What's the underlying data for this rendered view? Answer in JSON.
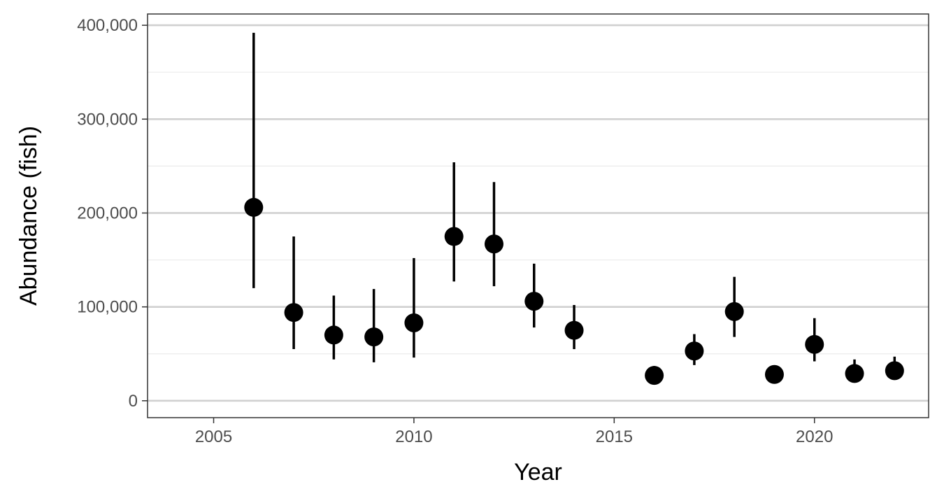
{
  "chart_data": {
    "type": "scatter",
    "title": "",
    "xlabel": "Year",
    "ylabel": "Abundance (fish)",
    "xlim": [
      2003.35,
      2022.85
    ],
    "ylim": [
      -18000,
      412000
    ],
    "x_ticks": [
      2005,
      2010,
      2015,
      2020
    ],
    "x_tick_labels": [
      "2005",
      "2010",
      "2015",
      "2020"
    ],
    "y_ticks": [
      0,
      100000,
      200000,
      300000,
      400000
    ],
    "y_tick_labels": [
      "0",
      "100,000",
      "200,000",
      "300,000",
      "400,000"
    ],
    "y_minor_gridlines": [
      50000,
      150000,
      250000,
      350000
    ],
    "grid": "horizontal major and minor",
    "legend": "none",
    "colors": {
      "points": "#000000",
      "major_grid": "#d0d0d0",
      "minor_grid": "#ebebeb",
      "panel_border": "#333333"
    },
    "points": [
      {
        "x": 2006,
        "y": 206000,
        "lower": 120000,
        "upper": 392000
      },
      {
        "x": 2007,
        "y": 94000,
        "lower": 55000,
        "upper": 175000
      },
      {
        "x": 2008,
        "y": 70000,
        "lower": 44000,
        "upper": 112000
      },
      {
        "x": 2009,
        "y": 68000,
        "lower": 41000,
        "upper": 119000
      },
      {
        "x": 2010,
        "y": 83000,
        "lower": 46000,
        "upper": 152000
      },
      {
        "x": 2011,
        "y": 175000,
        "lower": 127000,
        "upper": 254000
      },
      {
        "x": 2012,
        "y": 167000,
        "lower": 122000,
        "upper": 233000
      },
      {
        "x": 2013,
        "y": 106000,
        "lower": 78000,
        "upper": 146000
      },
      {
        "x": 2014,
        "y": 75000,
        "lower": 55000,
        "upper": 102000
      },
      {
        "x": 2016,
        "y": 27000,
        "lower": 22000,
        "upper": 37000
      },
      {
        "x": 2017,
        "y": 53000,
        "lower": 38000,
        "upper": 71000
      },
      {
        "x": 2018,
        "y": 95000,
        "lower": 68000,
        "upper": 132000
      },
      {
        "x": 2019,
        "y": 28000,
        "lower": 22000,
        "upper": 37000
      },
      {
        "x": 2020,
        "y": 60000,
        "lower": 42000,
        "upper": 88000
      },
      {
        "x": 2021,
        "y": 29000,
        "lower": 22000,
        "upper": 44000
      },
      {
        "x": 2022,
        "y": 32000,
        "lower": 24000,
        "upper": 47000
      }
    ]
  }
}
